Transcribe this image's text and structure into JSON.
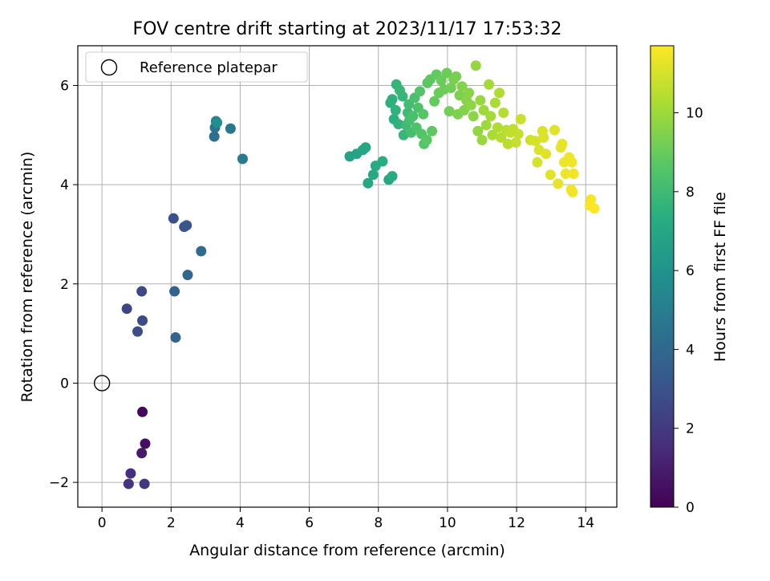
{
  "chart_data": {
    "type": "scatter",
    "title": "FOV centre drift starting at 2023/11/17 17:53:32",
    "xlabel": "Angular distance from reference (arcmin)",
    "ylabel": "Rotation from reference (arcmin)",
    "xlim": [
      -0.7,
      14.9
    ],
    "ylim": [
      -2.5,
      6.8
    ],
    "xticks": [
      0,
      2,
      4,
      6,
      8,
      10,
      12,
      14
    ],
    "yticks": [
      -2,
      0,
      2,
      4,
      6
    ],
    "xtick_labels": [
      "0",
      "2",
      "4",
      "6",
      "8",
      "10",
      "12",
      "14"
    ],
    "ytick_labels": [
      "−2",
      "0",
      "2",
      "4",
      "6"
    ],
    "grid": true,
    "legend": {
      "position": "top-left",
      "entries": [
        "Reference platepar"
      ]
    },
    "colormap": "viridis",
    "colorbar": {
      "label": "Hours from first FF file",
      "range": [
        0,
        11.7
      ],
      "ticks": [
        0,
        2,
        4,
        6,
        8,
        10
      ],
      "tick_labels": [
        "0",
        "2",
        "4",
        "6",
        "8",
        "10"
      ]
    },
    "reference_point": {
      "x": 0,
      "y": 0
    },
    "points": [
      {
        "x": 1.17,
        "y": -0.58,
        "c": 0.2
      },
      {
        "x": 1.25,
        "y": -1.22,
        "c": 0.5
      },
      {
        "x": 1.15,
        "y": -1.41,
        "c": 0.8
      },
      {
        "x": 0.83,
        "y": -1.82,
        "c": 1.6
      },
      {
        "x": 0.77,
        "y": -2.03,
        "c": 1.8
      },
      {
        "x": 1.23,
        "y": -2.03,
        "c": 1.9
      },
      {
        "x": 0.72,
        "y": 1.5,
        "c": 2.4
      },
      {
        "x": 1.15,
        "y": 1.85,
        "c": 2.6
      },
      {
        "x": 1.17,
        "y": 1.26,
        "c": 2.7
      },
      {
        "x": 1.03,
        "y": 1.04,
        "c": 2.8
      },
      {
        "x": 2.07,
        "y": 3.32,
        "c": 2.9
      },
      {
        "x": 2.38,
        "y": 3.15,
        "c": 3.1
      },
      {
        "x": 2.45,
        "y": 3.18,
        "c": 3.2
      },
      {
        "x": 2.1,
        "y": 1.85,
        "c": 3.7
      },
      {
        "x": 2.13,
        "y": 0.92,
        "c": 3.8
      },
      {
        "x": 2.48,
        "y": 2.18,
        "c": 3.9
      },
      {
        "x": 2.87,
        "y": 2.66,
        "c": 4.1
      },
      {
        "x": 3.25,
        "y": 4.97,
        "c": 4.3
      },
      {
        "x": 3.27,
        "y": 5.15,
        "c": 4.5
      },
      {
        "x": 3.72,
        "y": 5.13,
        "c": 4.6
      },
      {
        "x": 4.07,
        "y": 4.52,
        "c": 4.8
      },
      {
        "x": 3.3,
        "y": 5.28,
        "c": 5.2
      },
      {
        "x": 3.33,
        "y": 5.25,
        "c": 5.8
      },
      {
        "x": 7.17,
        "y": 4.57,
        "c": 6.7
      },
      {
        "x": 7.37,
        "y": 4.62,
        "c": 6.8
      },
      {
        "x": 7.55,
        "y": 4.7,
        "c": 6.9
      },
      {
        "x": 7.63,
        "y": 4.75,
        "c": 7.0
      },
      {
        "x": 7.7,
        "y": 4.03,
        "c": 7.0
      },
      {
        "x": 7.85,
        "y": 4.2,
        "c": 7.1
      },
      {
        "x": 7.92,
        "y": 4.38,
        "c": 7.2
      },
      {
        "x": 8.12,
        "y": 4.47,
        "c": 7.3
      },
      {
        "x": 8.3,
        "y": 4.1,
        "c": 7.1
      },
      {
        "x": 8.4,
        "y": 4.17,
        "c": 7.2
      },
      {
        "x": 8.45,
        "y": 5.32,
        "c": 7.4
      },
      {
        "x": 8.35,
        "y": 5.65,
        "c": 7.5
      },
      {
        "x": 8.5,
        "y": 5.5,
        "c": 7.6
      },
      {
        "x": 8.4,
        "y": 5.72,
        "c": 7.5
      },
      {
        "x": 8.52,
        "y": 6.02,
        "c": 7.7
      },
      {
        "x": 8.62,
        "y": 5.9,
        "c": 7.8
      },
      {
        "x": 8.7,
        "y": 5.78,
        "c": 7.8
      },
      {
        "x": 8.58,
        "y": 5.22,
        "c": 7.6
      },
      {
        "x": 8.73,
        "y": 5.0,
        "c": 7.8
      },
      {
        "x": 8.8,
        "y": 5.2,
        "c": 8.0
      },
      {
        "x": 8.85,
        "y": 5.45,
        "c": 8.0
      },
      {
        "x": 8.88,
        "y": 5.62,
        "c": 8.1
      },
      {
        "x": 8.9,
        "y": 5.3,
        "c": 8.2
      },
      {
        "x": 8.95,
        "y": 5.05,
        "c": 8.2
      },
      {
        "x": 9.0,
        "y": 5.38,
        "c": 8.3
      },
      {
        "x": 9.05,
        "y": 5.75,
        "c": 8.3
      },
      {
        "x": 9.1,
        "y": 5.15,
        "c": 8.4
      },
      {
        "x": 9.15,
        "y": 5.55,
        "c": 8.4
      },
      {
        "x": 9.2,
        "y": 5.88,
        "c": 8.5
      },
      {
        "x": 9.25,
        "y": 5.02,
        "c": 8.5
      },
      {
        "x": 9.3,
        "y": 5.42,
        "c": 8.6
      },
      {
        "x": 9.32,
        "y": 4.82,
        "c": 8.6
      },
      {
        "x": 9.4,
        "y": 4.9,
        "c": 8.7
      },
      {
        "x": 9.42,
        "y": 6.05,
        "c": 8.7
      },
      {
        "x": 9.5,
        "y": 6.12,
        "c": 8.8
      },
      {
        "x": 9.55,
        "y": 5.08,
        "c": 8.8
      },
      {
        "x": 9.62,
        "y": 5.68,
        "c": 8.9
      },
      {
        "x": 9.68,
        "y": 6.22,
        "c": 8.9
      },
      {
        "x": 9.75,
        "y": 5.85,
        "c": 9.0
      },
      {
        "x": 9.82,
        "y": 6.1,
        "c": 9.0
      },
      {
        "x": 9.9,
        "y": 5.92,
        "c": 9.1
      },
      {
        "x": 9.98,
        "y": 6.25,
        "c": 9.1
      },
      {
        "x": 10.05,
        "y": 5.48,
        "c": 9.2
      },
      {
        "x": 10.1,
        "y": 5.95,
        "c": 9.2
      },
      {
        "x": 10.18,
        "y": 6.12,
        "c": 9.3
      },
      {
        "x": 10.25,
        "y": 6.18,
        "c": 9.3
      },
      {
        "x": 10.3,
        "y": 5.42,
        "c": 9.4
      },
      {
        "x": 10.35,
        "y": 5.8,
        "c": 9.4
      },
      {
        "x": 10.42,
        "y": 5.98,
        "c": 9.5
      },
      {
        "x": 10.48,
        "y": 5.5,
        "c": 9.5
      },
      {
        "x": 10.55,
        "y": 5.7,
        "c": 9.6
      },
      {
        "x": 10.62,
        "y": 5.85,
        "c": 9.6
      },
      {
        "x": 10.68,
        "y": 5.6,
        "c": 9.7
      },
      {
        "x": 10.75,
        "y": 5.38,
        "c": 9.7
      },
      {
        "x": 10.82,
        "y": 6.4,
        "c": 9.8
      },
      {
        "x": 10.88,
        "y": 5.08,
        "c": 9.8
      },
      {
        "x": 10.95,
        "y": 5.7,
        "c": 9.9
      },
      {
        "x": 11.0,
        "y": 4.9,
        "c": 9.9
      },
      {
        "x": 11.05,
        "y": 5.5,
        "c": 10.0
      },
      {
        "x": 11.12,
        "y": 5.2,
        "c": 10.0
      },
      {
        "x": 11.2,
        "y": 6.02,
        "c": 10.1
      },
      {
        "x": 11.25,
        "y": 5.38,
        "c": 10.1
      },
      {
        "x": 11.3,
        "y": 5.0,
        "c": 10.2
      },
      {
        "x": 11.38,
        "y": 5.65,
        "c": 10.2
      },
      {
        "x": 11.45,
        "y": 5.15,
        "c": 10.3
      },
      {
        "x": 11.5,
        "y": 5.85,
        "c": 10.3
      },
      {
        "x": 11.55,
        "y": 4.95,
        "c": 10.4
      },
      {
        "x": 11.62,
        "y": 5.45,
        "c": 10.4
      },
      {
        "x": 11.7,
        "y": 5.1,
        "c": 10.5
      },
      {
        "x": 11.75,
        "y": 4.82,
        "c": 10.5
      },
      {
        "x": 11.82,
        "y": 5.05,
        "c": 10.6
      },
      {
        "x": 11.9,
        "y": 5.12,
        "c": 10.6
      },
      {
        "x": 11.98,
        "y": 4.85,
        "c": 10.7
      },
      {
        "x": 12.05,
        "y": 5.02,
        "c": 10.7
      },
      {
        "x": 12.12,
        "y": 5.32,
        "c": 10.8
      },
      {
        "x": 12.4,
        "y": 4.9,
        "c": 10.9
      },
      {
        "x": 12.55,
        "y": 4.88,
        "c": 11.0
      },
      {
        "x": 12.6,
        "y": 4.45,
        "c": 11.0
      },
      {
        "x": 12.65,
        "y": 4.7,
        "c": 11.1
      },
      {
        "x": 12.78,
        "y": 4.95,
        "c": 11.1
      },
      {
        "x": 12.75,
        "y": 5.08,
        "c": 11.1
      },
      {
        "x": 12.85,
        "y": 4.62,
        "c": 11.2
      },
      {
        "x": 12.98,
        "y": 4.2,
        "c": 11.2
      },
      {
        "x": 13.1,
        "y": 5.1,
        "c": 11.2
      },
      {
        "x": 13.2,
        "y": 4.02,
        "c": 11.3
      },
      {
        "x": 13.28,
        "y": 4.75,
        "c": 11.3
      },
      {
        "x": 13.32,
        "y": 4.82,
        "c": 11.3
      },
      {
        "x": 13.38,
        "y": 4.45,
        "c": 11.4
      },
      {
        "x": 13.42,
        "y": 4.22,
        "c": 11.4
      },
      {
        "x": 13.52,
        "y": 4.55,
        "c": 11.4
      },
      {
        "x": 13.58,
        "y": 3.9,
        "c": 11.5
      },
      {
        "x": 13.6,
        "y": 4.45,
        "c": 11.5
      },
      {
        "x": 13.65,
        "y": 4.22,
        "c": 11.5
      },
      {
        "x": 13.62,
        "y": 3.85,
        "c": 11.5
      },
      {
        "x": 14.15,
        "y": 3.7,
        "c": 11.6
      },
      {
        "x": 14.12,
        "y": 3.58,
        "c": 11.6
      },
      {
        "x": 14.25,
        "y": 3.52,
        "c": 11.7
      }
    ]
  }
}
